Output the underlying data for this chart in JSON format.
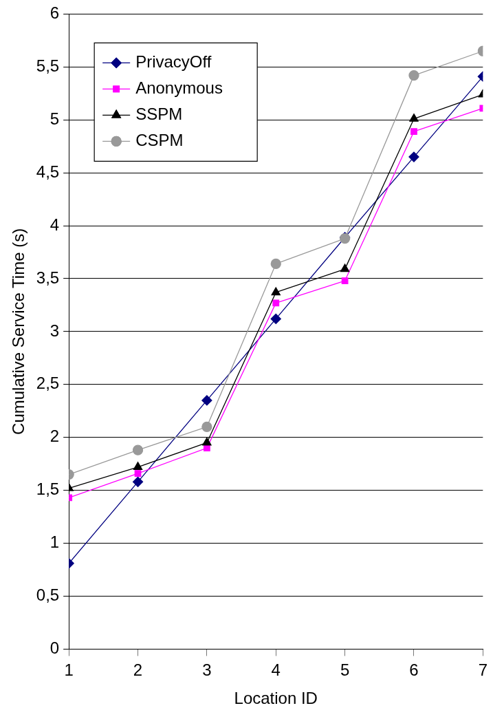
{
  "chart_data": {
    "type": "line",
    "xlabel": "Location ID",
    "ylabel": "Cumulative Service Time (s)",
    "x": [
      1,
      2,
      3,
      4,
      5,
      6,
      7
    ],
    "xlim": [
      1,
      7
    ],
    "xticks": [
      1,
      2,
      3,
      4,
      5,
      6,
      7
    ],
    "ylim": [
      0,
      6
    ],
    "yticks": [
      0,
      {
        "value": 0.5,
        "label": "0,5"
      },
      1,
      {
        "value": 1.5,
        "label": "1,5"
      },
      2,
      {
        "value": 2.5,
        "label": "2,5"
      },
      3,
      {
        "value": 3.5,
        "label": "3,5"
      },
      4,
      {
        "value": 4.5,
        "label": "4,5"
      },
      5,
      {
        "value": 5.5,
        "label": "5,5"
      },
      6
    ],
    "grid": "y",
    "legend": "top left",
    "series": [
      {
        "name": "PrivacyOff",
        "color": "#000080",
        "marker": "diamond",
        "values": [
          0.81,
          1.58,
          2.35,
          3.12,
          3.89,
          4.65,
          5.41
        ]
      },
      {
        "name": "Anonymous",
        "color": "#ff00ff",
        "marker": "square",
        "values": [
          1.43,
          1.66,
          1.9,
          3.27,
          3.48,
          4.89,
          5.11
        ]
      },
      {
        "name": "SSPM",
        "color": "#000000",
        "marker": "triangle",
        "values": [
          1.52,
          1.72,
          1.95,
          3.37,
          3.59,
          5.01,
          5.24
        ]
      },
      {
        "name": "CSPM",
        "color": "#999999",
        "marker": "circle",
        "values": [
          1.65,
          1.88,
          2.1,
          3.64,
          3.88,
          5.42,
          5.65
        ]
      }
    ]
  }
}
